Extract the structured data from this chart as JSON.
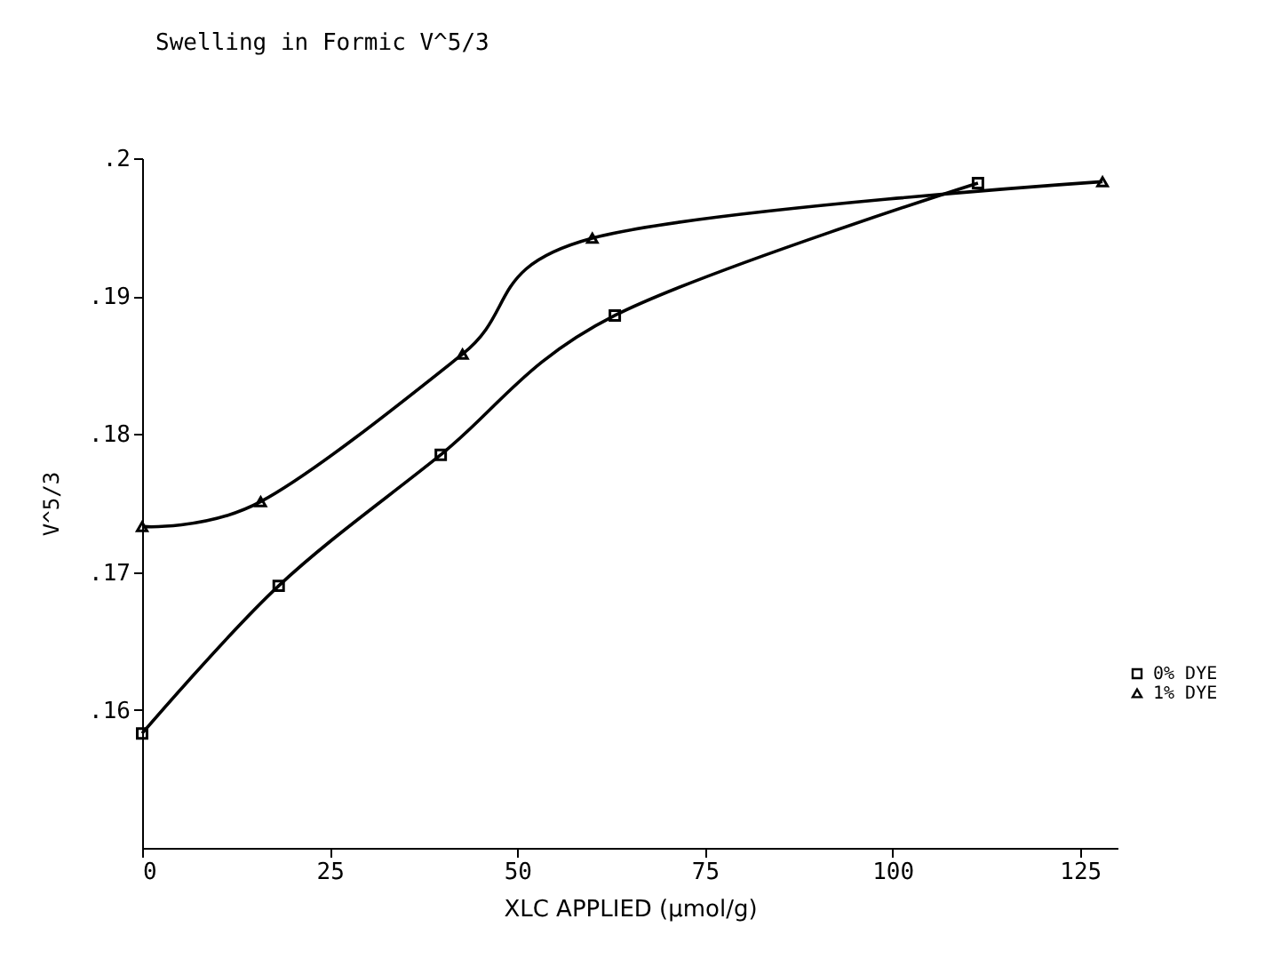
{
  "chart_data": {
    "type": "line",
    "title": "Swelling in Formic V^5/3",
    "xlabel": "XLC APPLIED (μmol/g)",
    "ylabel": "V^5/3",
    "series": [
      {
        "name": "0% DYE",
        "color": "#000000",
        "marker": "square",
        "x": [
          0,
          18.2,
          39.8,
          63,
          111.4
        ],
        "values": [
          0.1583,
          0.169,
          0.1785,
          0.1886,
          0.1982
        ]
      },
      {
        "name": "1% DYE",
        "color": "#000000",
        "marker": "triangle",
        "x": [
          0,
          15.8,
          42.7,
          60,
          128
        ],
        "values": [
          0.1733,
          0.1751,
          0.1858,
          0.1942,
          0.1983
        ]
      }
    ],
    "xlim": [
      0,
      130
    ],
    "xticks": [
      0,
      25,
      50,
      75,
      100,
      125
    ],
    "ylim": [
      0.15,
      0.2
    ],
    "yticks": [
      {
        "value": 0.16,
        "label": ".16"
      },
      {
        "value": 0.17,
        "label": ".17"
      },
      {
        "value": 0.18,
        "label": ".18"
      },
      {
        "value": 0.19,
        "label": ".19"
      },
      {
        "value": 0.2,
        "label": ".2"
      }
    ],
    "grid": false,
    "legend": "right",
    "line_style": "solid"
  }
}
